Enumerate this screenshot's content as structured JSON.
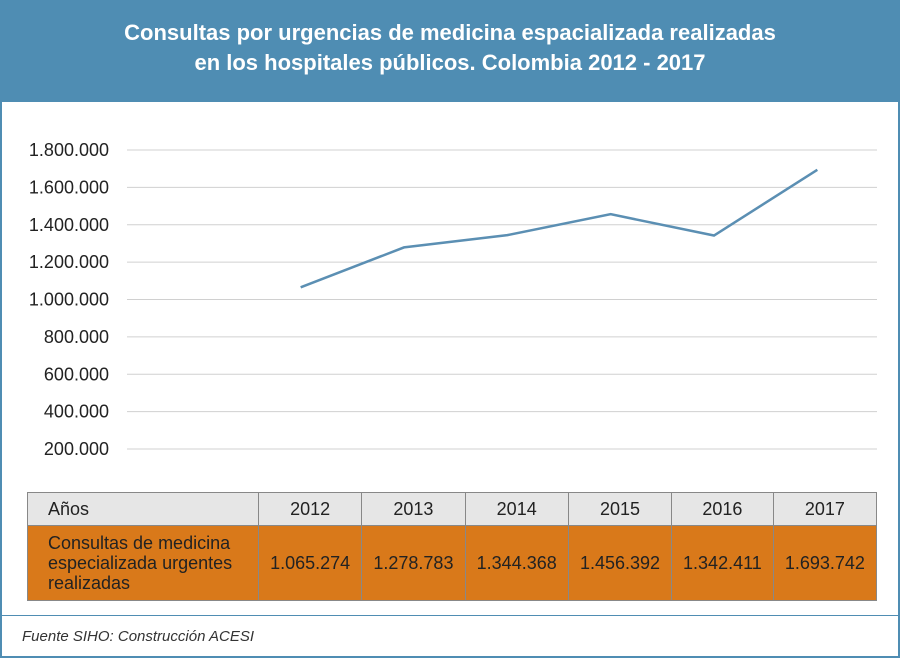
{
  "header": {
    "title_line1": "Consultas por urgencias de medicina espacializada realizadas",
    "title_line2": "en los hospitales públicos. Colombia 2012 - 2017"
  },
  "chart_data": {
    "type": "line",
    "title": "Consultas por urgencias de medicina espacializada realizadas en los hospitales públicos. Colombia 2012 - 2017",
    "x": [
      "2012",
      "2013",
      "2014",
      "2015",
      "2016",
      "2017"
    ],
    "series": [
      {
        "values": [
          1065274,
          1278783,
          1344368,
          1456392,
          1342411,
          1693742
        ]
      }
    ],
    "ylim": [
      200000,
      1800000
    ],
    "yticks": [
      200000,
      400000,
      600000,
      800000,
      1000000,
      1200000,
      1400000,
      1600000,
      1800000
    ],
    "ytick_labels": [
      "200.000",
      "400.000",
      "600.000",
      "800.000",
      "1.000.000",
      "1.200.000",
      "1.400.000",
      "1.600.000",
      "1.800.000"
    ],
    "grid": true,
    "line_color": "#5b8fb3"
  },
  "table": {
    "header_label": "Años",
    "years": [
      "2012",
      "2013",
      "2014",
      "2015",
      "2016",
      "2017"
    ],
    "row_label": "Consultas de medicina especializada urgentes realizadas",
    "row_values": [
      "1.065.274",
      "1.278.783",
      "1.344.368",
      "1.456.392",
      "1.342.411",
      "1.693.742"
    ]
  },
  "footer": {
    "source": "Fuente SIHO: Construcción ACESI"
  },
  "colors": {
    "header_bg": "#4f8db3",
    "row_bg": "#d9791a",
    "header_row_bg": "#e6e6e6"
  }
}
